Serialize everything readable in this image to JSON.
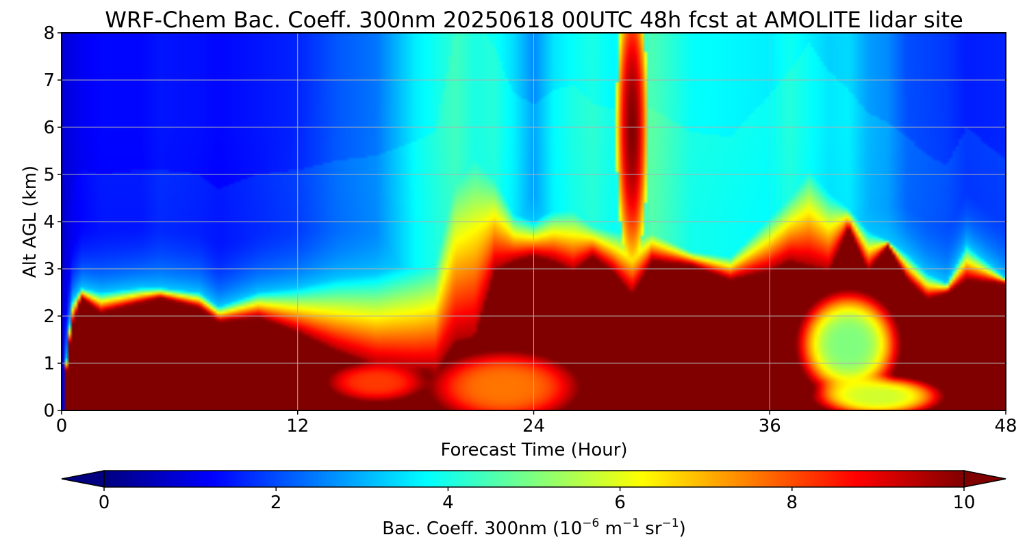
{
  "chart_data": {
    "type": "heatmap",
    "title": "WRF-Chem Bac. Coeff. 300nm  20250618 00UTC 48h fcst at AMOLITE lidar site",
    "xlabel": "Forecast Time (Hour)",
    "ylabel": "Alt AGL (km)",
    "xlim": [
      0,
      48
    ],
    "ylim": [
      0,
      8
    ],
    "xticks": [
      0,
      12,
      24,
      36,
      48
    ],
    "yticks": [
      0,
      1,
      2,
      3,
      4,
      5,
      6,
      7,
      8
    ],
    "grid": true,
    "colormap": "jet",
    "colorbar": {
      "orientation": "horizontal",
      "position": "bottom",
      "range": [
        0,
        10
      ],
      "ticks": [
        0,
        2,
        4,
        6,
        8,
        10
      ],
      "extend": "both",
      "label_main": "Bac. Coeff. 300nm  (10",
      "label_exp1": "−6",
      "label_mid": " m",
      "label_exp2": "−1",
      "label_mid2": " sr",
      "label_exp3": "−1",
      "label_end": ")"
    },
    "x_hours": [
      0,
      0.5,
      1,
      2,
      4,
      5,
      7,
      8,
      10,
      12,
      14,
      16,
      18,
      19,
      20,
      21,
      22,
      23,
      24,
      25,
      26,
      27,
      28,
      29,
      30,
      32,
      34,
      36,
      37,
      38,
      39,
      40,
      41,
      42,
      43,
      44,
      45,
      46,
      48
    ],
    "layer_top_km": [
      0.0,
      1.8,
      2.4,
      2.1,
      2.3,
      2.4,
      2.2,
      1.9,
      2.0,
      1.7,
      1.3,
      1.0,
      0.9,
      0.9,
      1.5,
      1.6,
      3.0,
      3.2,
      3.3,
      3.2,
      3.0,
      3.3,
      3.0,
      2.5,
      3.2,
      3.1,
      2.8,
      3.0,
      3.2,
      3.1,
      3.0,
      3.9,
      3.0,
      3.5,
      2.8,
      2.4,
      2.5,
      2.8,
      2.7
    ],
    "plume_top_km": [
      0.0,
      2.3,
      2.6,
      2.5,
      2.6,
      2.6,
      2.5,
      2.2,
      2.5,
      2.6,
      2.8,
      2.9,
      3.2,
      3.4,
      5.5,
      5.9,
      5.2,
      4.2,
      4.0,
      4.3,
      4.4,
      4.0,
      3.9,
      3.9,
      3.9,
      3.4,
      3.3,
      4.2,
      4.7,
      5.3,
      4.7,
      4.3,
      3.8,
      3.6,
      3.3,
      2.9,
      2.7,
      3.5,
      2.8
    ],
    "background_by_altitude": [
      1.0,
      1.2,
      1.0,
      0.8,
      0.8,
      0.9,
      1.0,
      1.1,
      1.3
    ],
    "background_by_hour": [
      0.6,
      0.8,
      1.0,
      1.2,
      1.2,
      1.4,
      1.3,
      1.2,
      1.4,
      1.6,
      2.1,
      2.4,
      3.6,
      3.9,
      4.2,
      3.8,
      3.9,
      3.4,
      2.6,
      3.5,
      3.8,
      4.0,
      3.7,
      3.9,
      4.5,
      3.8,
      3.7,
      3.6,
      3.9,
      3.6,
      3.3,
      3.4,
      2.8,
      2.6,
      2.0,
      1.9,
      1.8,
      1.5,
      1.6
    ],
    "lower_pockets": [
      {
        "x_center": 16.0,
        "y_center": 0.6,
        "x_halfwidth": 3.0,
        "y_halfwidth": 0.5,
        "value": 8.2
      },
      {
        "x_center": 22.5,
        "y_center": 0.5,
        "x_halfwidth": 4.5,
        "y_halfwidth": 0.9,
        "value": 7.6
      },
      {
        "x_center": 40.0,
        "y_center": 1.4,
        "x_halfwidth": 3.0,
        "y_halfwidth": 1.3,
        "value": 5.0
      },
      {
        "x_center": 41.5,
        "y_center": 0.3,
        "x_halfwidth": 3.8,
        "y_halfwidth": 0.5,
        "value": 5.8
      }
    ],
    "upper_plume": {
      "x_center": 29.0,
      "y_center": 6.0,
      "x_halfwidth": 0.8,
      "y_halfwidth": 3.0,
      "value": 10.0
    }
  }
}
